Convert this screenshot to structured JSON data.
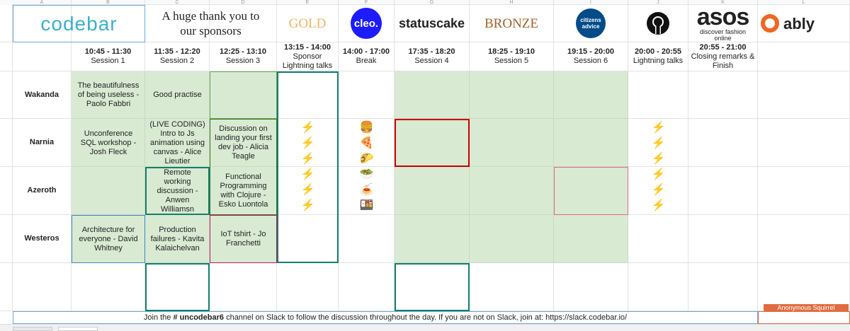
{
  "column_letters": [
    "A",
    "B",
    "C",
    "D",
    "E",
    "F",
    "G",
    "H",
    "I",
    "J",
    "K",
    "L"
  ],
  "header": {
    "codebar": "codebar",
    "thanks": "A huge thank you to our sponsors",
    "gold": "GOLD",
    "cleo": "cleo.",
    "statuscake": "statuscake",
    "bronze": "BRONZE",
    "citizens": "citizens advice",
    "asos": "asos",
    "asos_tagline": "discover fashion online",
    "ably": "ably"
  },
  "columns": [
    {
      "time": "10:45 - 11:30",
      "label": "Session 1"
    },
    {
      "time": "11:35 - 12:20",
      "label": "Session 2"
    },
    {
      "time": "12:25 - 13:10",
      "label": "Session 3"
    },
    {
      "time": "13:15 - 14:00",
      "label": "Sponsor Lightning talks"
    },
    {
      "time": "14:00 - 17:00",
      "label": "Break"
    },
    {
      "time": "17:35 - 18:20",
      "label": "Session 4"
    },
    {
      "time": "18:25 - 19:10",
      "label": "Session 5"
    },
    {
      "time": "19:15 - 20:00",
      "label": "Session 6"
    },
    {
      "time": "20:00 - 20:55",
      "label": "Lightning talks"
    },
    {
      "time": "20:55 - 21:00",
      "label": "Closing remarks & Finish"
    }
  ],
  "rooms": [
    "Wakanda",
    "Narnia",
    "Azeroth",
    "Westeros"
  ],
  "sessions": [
    [
      "The beautifulness of being useless - Paolo Fabbri",
      "Good practise",
      null
    ],
    [
      "Unconference SQL workshop - Josh Fleck",
      "(LIVE CODING) Intro to Js animation using canvas - Alice Lieutier",
      "Discussion on landing your first dev job - Alicia Teagle"
    ],
    [
      null,
      "Remote working discussion - Anwen Williamsn",
      "Functional Programming with Clojure - Esko Luontola"
    ],
    [
      "Architecture for everyone - David Whitney",
      "Production failures - Kavita Kalaichelvan",
      "IoT tshirt - Jo Franchetti"
    ]
  ],
  "sponsor_lightning": [
    "⚡",
    "⚡",
    "⚡",
    "⚡",
    "⚡",
    "⚡"
  ],
  "food": [
    "🍔",
    "🍕",
    "🌮",
    "🥗",
    "🍝",
    "🍱"
  ],
  "lightning": [
    "⚡",
    "⚡",
    "⚡",
    "⚡",
    "⚡",
    "⚡"
  ],
  "footer": {
    "before": "Join the ",
    "channel": "# uncodebar6",
    "after": " channel on Slack to follow the discussion throughout the day. If you are not on Slack, join at: https://slack.codebar.io/"
  },
  "cursor_label": "Anonymous Squirrel"
}
